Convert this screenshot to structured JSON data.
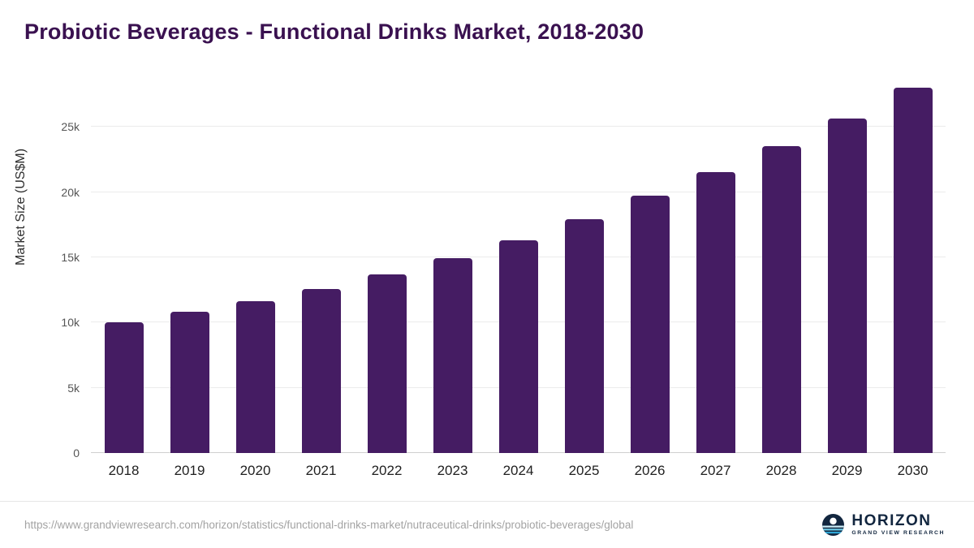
{
  "chart_data": {
    "type": "bar",
    "title": "Probiotic Beverages - Functional Drinks Market, 2018-2030",
    "xlabel": "",
    "ylabel": "Market Size (US$M)",
    "categories": [
      "2018",
      "2019",
      "2020",
      "2021",
      "2022",
      "2023",
      "2024",
      "2025",
      "2026",
      "2027",
      "2028",
      "2029",
      "2030"
    ],
    "values": [
      10000,
      10800,
      11650,
      12600,
      13700,
      14950,
      16300,
      17950,
      19700,
      21550,
      23550,
      25650,
      28000
    ],
    "ylim": [
      0,
      28750
    ],
    "yticks": [
      {
        "value": 0,
        "label": "0"
      },
      {
        "value": 5000,
        "label": "5k"
      },
      {
        "value": 10000,
        "label": "10k"
      },
      {
        "value": 15000,
        "label": "15k"
      },
      {
        "value": 20000,
        "label": "20k"
      },
      {
        "value": 25000,
        "label": "25k"
      }
    ],
    "grid": true,
    "legend": "none",
    "bar_color": "#451c63"
  },
  "colors": {
    "title": "#3a1150",
    "bar": "#451c63",
    "logo_navy": "#12263f",
    "logo_blue": "#45b8e0"
  },
  "footer": {
    "source_url": "https://www.grandviewresearch.com/horizon/statistics/functional-drinks-market/nutraceutical-drinks/probiotic-beverages/global",
    "logo": {
      "name": "HORIZON",
      "subtitle": "GRAND VIEW RESEARCH"
    }
  }
}
